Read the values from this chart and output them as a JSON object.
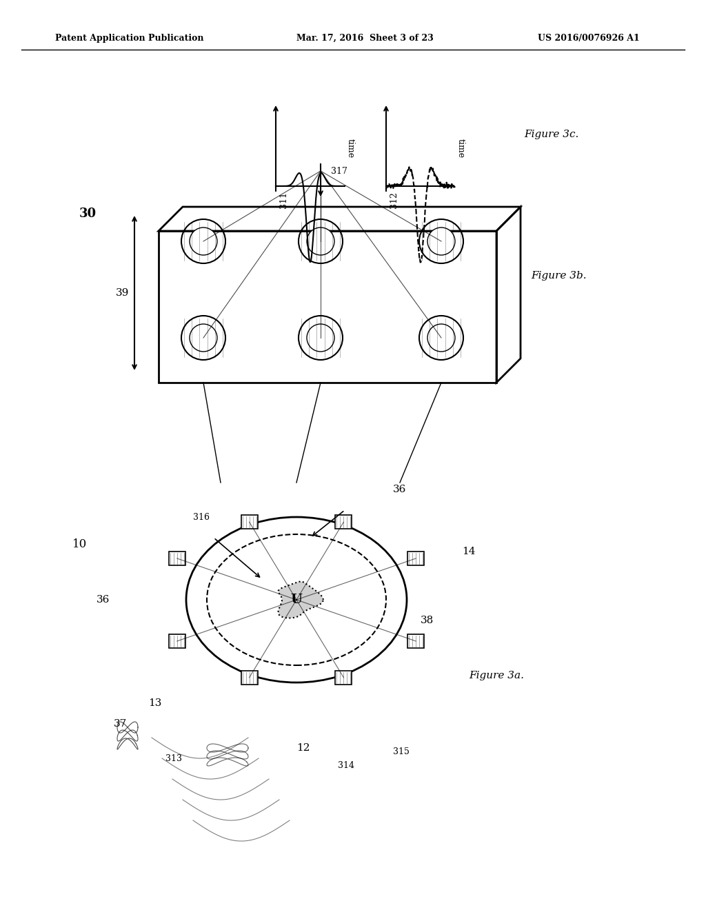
{
  "bg_color": "#ffffff",
  "header_left": "Patent Application Publication",
  "header_center": "Mar. 17, 2016  Sheet 3 of 23",
  "header_right": "US 2016/0076926 A1",
  "fig_label_3c": "Figure 3c.",
  "fig_label_3b": "Figure 3b.",
  "fig_label_3a": "Figure 3a.",
  "label_30": "30",
  "label_39": "39",
  "label_10": "10",
  "label_12": "12",
  "label_13": "13",
  "label_14": "14",
  "label_36a": "36",
  "label_36b": "36",
  "label_37": "37",
  "label_38": "38",
  "label_311": "311",
  "label_312": "312",
  "label_313": "313",
  "label_314": "314",
  "label_315": "315",
  "label_316": "316",
  "label_317": "317",
  "text_time1": "time",
  "text_time2": "time"
}
